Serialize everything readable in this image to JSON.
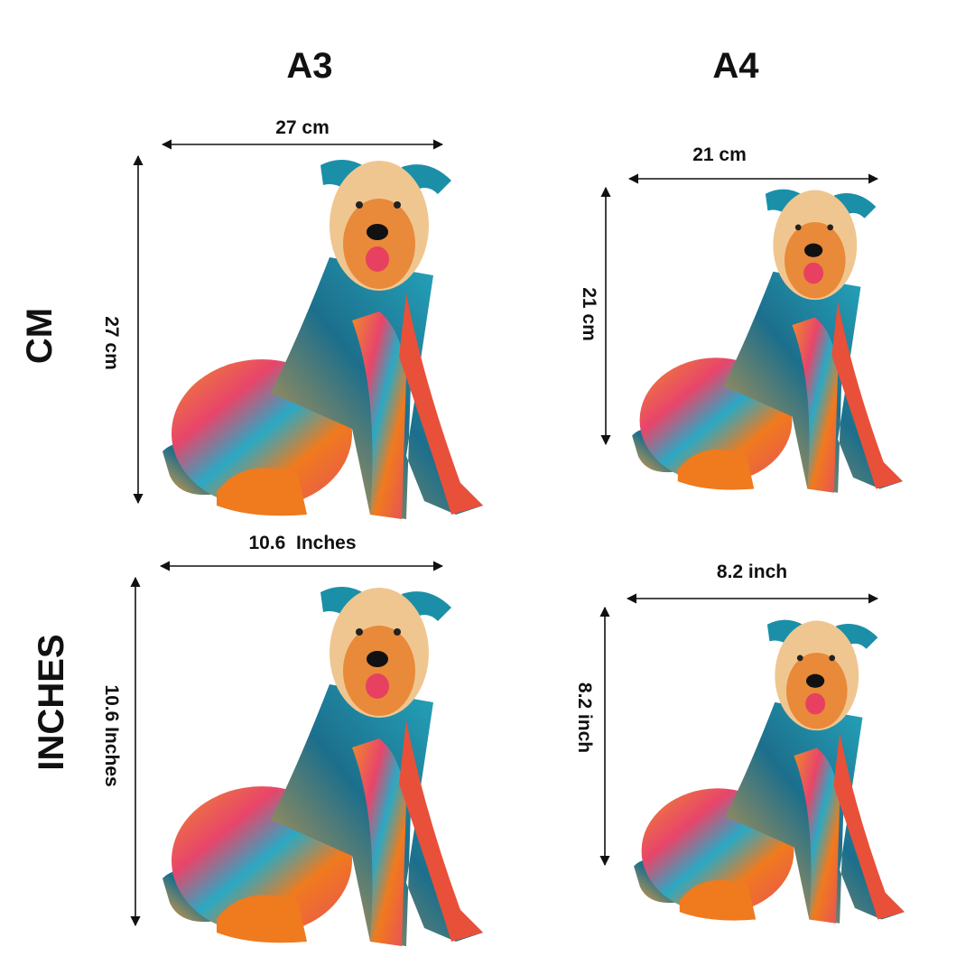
{
  "columns": [
    "A3",
    "A4"
  ],
  "rows": [
    "CM",
    "INCHES"
  ],
  "panels": [
    {
      "width_label": "27 cm",
      "height_label": "27 cm"
    },
    {
      "width_label": "21 cm",
      "height_label": "21 cm"
    },
    {
      "width_label": "10.6  Inches",
      "height_label": "10.6 Inches"
    },
    {
      "width_label": "8.2 inch",
      "height_label": "8.2 inch"
    }
  ]
}
